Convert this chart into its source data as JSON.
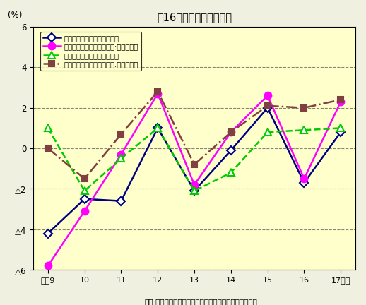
{
  "title": "図16　経済成長率の推移",
  "xlabel_note": "資料:内閣府「国民経済計算年報」、川崎市市民経済計算",
  "ylabel": "(%)",
  "fig_background": "#F0F0E0",
  "plot_background": "#FFFFCC",
  "x_labels": [
    "平戆9",
    "10",
    "11",
    "12",
    "13",
    "14",
    "15",
    "16",
    "17年度"
  ],
  "x_values": [
    9,
    10,
    11,
    12,
    13,
    14,
    15,
    16,
    17
  ],
  "series": [
    {
      "label": "市内総生産（生産側、名目）",
      "values": [
        -4.2,
        -2.5,
        -2.6,
        1.0,
        -2.1,
        -0.1,
        2.0,
        -1.7,
        0.8
      ],
      "color": "#000080",
      "linestyle": "solid",
      "marker": "D",
      "markersize": 6,
      "linewidth": 1.8,
      "markerfacecolor": "white",
      "markeredgecolor": "#000080",
      "markeredgewidth": 1.5
    },
    {
      "label": "市内総生産（生産側、実質:連鎖方式）",
      "values": [
        -5.8,
        -3.1,
        -0.3,
        2.7,
        -1.8,
        0.8,
        2.6,
        -1.5,
        2.3
      ],
      "color": "#FF00FF",
      "linestyle": "solid",
      "marker": "o",
      "markersize": 7,
      "linewidth": 1.8,
      "markerfacecolor": "#FF00FF",
      "markeredgecolor": "#FF00FF",
      "markeredgewidth": 1.5
    },
    {
      "label": "国内総生産（支出側、名目）",
      "values": [
        1.0,
        -2.1,
        -0.5,
        1.0,
        -2.1,
        -1.2,
        0.8,
        0.9,
        1.0
      ],
      "color": "#00CC00",
      "linestyle": "dashed",
      "marker": "^",
      "markersize": 7,
      "linewidth": 1.8,
      "markerfacecolor": "white",
      "markeredgecolor": "#00CC00",
      "markeredgewidth": 1.5
    },
    {
      "label": "国内総生産（支出側、実質:連鎖方式）",
      "values": [
        0.0,
        -1.5,
        0.7,
        2.8,
        -0.8,
        0.8,
        2.1,
        2.0,
        2.4
      ],
      "color": "#804040",
      "linestyle": "dashdot",
      "marker": "s",
      "markersize": 6,
      "linewidth": 1.8,
      "markerfacecolor": "#804040",
      "markeredgecolor": "#804040",
      "markeredgewidth": 1.5
    }
  ],
  "ylim": [
    -6,
    6
  ],
  "yticks": [
    -6,
    -4,
    -2,
    0,
    2,
    4,
    6
  ],
  "ytick_labels": [
    "△6",
    "△4",
    "△2",
    "0",
    "2",
    "4",
    "6"
  ],
  "grid_color": "#333333",
  "grid_alpha": 0.6
}
